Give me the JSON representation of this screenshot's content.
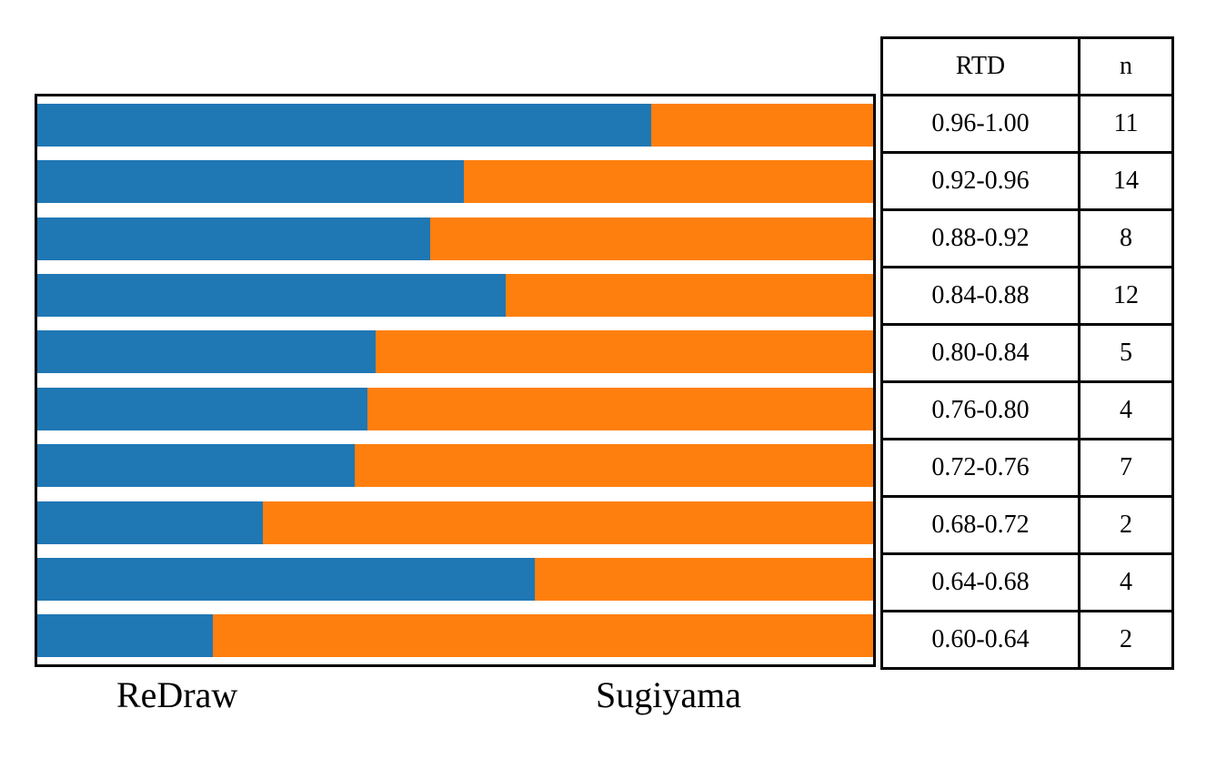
{
  "chart_data": {
    "type": "bar",
    "orientation": "horizontal",
    "stacked": true,
    "title": "",
    "xlabel": "",
    "ylabel": "",
    "xlim": [
      0,
      1
    ],
    "grid": false,
    "legend_position": "below",
    "categories": [
      "0.96-1.00",
      "0.92-0.96",
      "0.88-0.92",
      "0.84-0.88",
      "0.80-0.84",
      "0.76-0.80",
      "0.72-0.76",
      "0.68-0.72",
      "0.64-0.68",
      "0.60-0.64"
    ],
    "series": [
      {
        "name": "ReDraw",
        "color": "#1f77b4",
        "values": [
          0.735,
          0.51,
          0.47,
          0.56,
          0.405,
          0.395,
          0.38,
          0.27,
          0.595,
          0.21
        ]
      },
      {
        "name": "Sugiyama",
        "color": "#ff7f0e",
        "values": [
          0.265,
          0.49,
          0.53,
          0.44,
          0.595,
          0.605,
          0.62,
          0.73,
          0.405,
          0.79
        ]
      }
    ],
    "counts_n": [
      11,
      14,
      8,
      12,
      5,
      4,
      7,
      2,
      4,
      2
    ]
  },
  "table": {
    "headers": [
      "RTD",
      "n"
    ],
    "rows": [
      {
        "rtd": "0.96-1.00",
        "n": "11"
      },
      {
        "rtd": "0.92-0.96",
        "n": "14"
      },
      {
        "rtd": "0.88-0.92",
        "n": "8"
      },
      {
        "rtd": "0.84-0.88",
        "n": "12"
      },
      {
        "rtd": "0.80-0.84",
        "n": "5"
      },
      {
        "rtd": "0.76-0.80",
        "n": "4"
      },
      {
        "rtd": "0.72-0.76",
        "n": "7"
      },
      {
        "rtd": "0.68-0.72",
        "n": "2"
      },
      {
        "rtd": "0.64-0.68",
        "n": "4"
      },
      {
        "rtd": "0.60-0.64",
        "n": "2"
      }
    ]
  },
  "labels": {
    "redraw": "ReDraw",
    "sugiyama": "Sugiyama"
  },
  "colors": {
    "redraw": "#1f77b4",
    "sugiyama": "#ff7f0e",
    "border": "#000000",
    "background": "#ffffff"
  }
}
